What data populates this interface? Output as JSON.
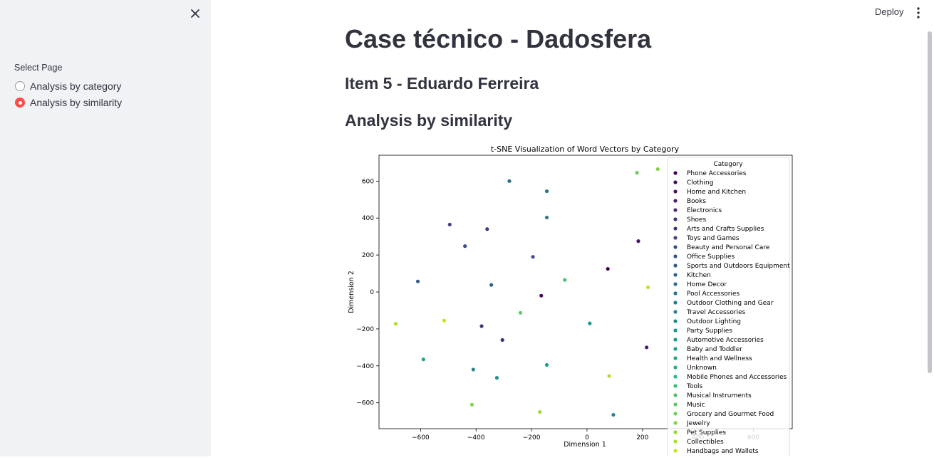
{
  "sidebar": {
    "nav_label": "Select Page",
    "options": [
      {
        "label": "Analysis by category",
        "selected": false
      },
      {
        "label": "Analysis by similarity",
        "selected": true
      }
    ]
  },
  "header": {
    "deploy_label": "Deploy"
  },
  "main": {
    "title": "Case técnico - Dadosfera",
    "subtitle": "Item 5 - Eduardo Ferreira",
    "section": "Analysis by similarity"
  },
  "colors": {
    "accent": "#ff4b4b",
    "sidebar_bg": "#f0f2f6",
    "text": "#31333f"
  },
  "chart_data": {
    "type": "scatter",
    "title": "t-SNE Visualization of Word Vectors by Category",
    "xlabel": "Dimension 1",
    "ylabel": "Dimension 2",
    "xlim": [
      -750,
      740
    ],
    "ylim": [
      -740,
      740
    ],
    "xticks": [
      -600,
      -400,
      -200,
      0,
      200,
      400,
      600
    ],
    "yticks": [
      -600,
      -400,
      -200,
      0,
      200,
      400,
      600
    ],
    "xtick_labels": [
      "−600",
      "−400",
      "−200",
      "0",
      "200",
      "400",
      "600"
    ],
    "ytick_labels": [
      "−600",
      "−400",
      "−200",
      "0",
      "200",
      "400",
      "600"
    ],
    "grid": false,
    "legend": {
      "title": "Category",
      "placement": "upper-right"
    },
    "categories": [
      "Phone Accessories",
      "Clothing",
      "Home and Kitchen",
      "Books",
      "Electronics",
      "Shoes",
      "Arts and Crafts Supplies",
      "Toys and Games",
      "Beauty and Personal Care",
      "Office Supplies",
      "Sports and Outdoors Equipment",
      "Kitchen",
      "Home Decor",
      "Pool Accessories",
      "Outdoor Clothing and Gear",
      "Travel Accessories",
      "Outdoor Lighting",
      "Party Supplies",
      "Automotive Accessories",
      "Baby and Toddler",
      "Health and Wellness",
      "Unknown",
      "Mobile Phones and Accessories",
      "Tools",
      "Musical Instruments",
      "Music",
      "Grocery and Gourmet Food",
      "Jewelry",
      "Pet Supplies",
      "Collectibles",
      "Handbags and Wallets"
    ],
    "colors": [
      "#440154",
      "#460b5e",
      "#471567",
      "#481e70",
      "#482878",
      "#46307e",
      "#443983",
      "#414287",
      "#3e4989",
      "#3a528b",
      "#365c8d",
      "#33638d",
      "#2f6c8e",
      "#2c738e",
      "#297b8e",
      "#26828e",
      "#23898e",
      "#21918c",
      "#1f988b",
      "#1fa088",
      "#22a785",
      "#28ae80",
      "#32b67a",
      "#3fbc73",
      "#4fc16b",
      "#5ec962",
      "#6ccd5a",
      "#84d44b",
      "#98d83e",
      "#b0dd2f",
      "#c8e020"
    ],
    "points": [
      {
        "x": 75,
        "y": 125,
        "c": 0
      },
      {
        "x": -165,
        "y": -20,
        "c": 1
      },
      {
        "x": 185,
        "y": 275,
        "c": 2
      },
      {
        "x": 215,
        "y": -300,
        "c": 3
      },
      {
        "x": -305,
        "y": -260,
        "c": 4
      },
      {
        "x": -380,
        "y": -185,
        "c": 5
      },
      {
        "x": -360,
        "y": 340,
        "c": 6
      },
      {
        "x": -495,
        "y": 365,
        "c": 7
      },
      {
        "x": -440,
        "y": 248,
        "c": 8
      },
      {
        "x": -195,
        "y": 190,
        "c": 9
      },
      {
        "x": -610,
        "y": 57,
        "c": 10
      },
      {
        "x": -345,
        "y": 38,
        "c": 11
      },
      {
        "x": -280,
        "y": 600,
        "c": 12
      },
      {
        "x": -145,
        "y": 545,
        "c": 13
      },
      {
        "x": -145,
        "y": 403,
        "c": 14
      },
      {
        "x": 95,
        "y": -665,
        "c": 15
      },
      {
        "x": -410,
        "y": -420,
        "c": 16
      },
      {
        "x": -325,
        "y": -465,
        "c": 17
      },
      {
        "x": 10,
        "y": -170,
        "c": 18
      },
      {
        "x": -145,
        "y": -395,
        "c": 19
      },
      {
        "x": -590,
        "y": -365,
        "c": 20
      },
      {
        "x": -80,
        "y": 65,
        "c": 24
      },
      {
        "x": -240,
        "y": -113,
        "c": 25
      },
      {
        "x": 180,
        "y": 645,
        "c": 26
      },
      {
        "x": 255,
        "y": 665,
        "c": 27
      },
      {
        "x": -415,
        "y": -610,
        "c": 27
      },
      {
        "x": -170,
        "y": -650,
        "c": 28
      },
      {
        "x": -690,
        "y": -172,
        "c": 29
      },
      {
        "x": 80,
        "y": -455,
        "c": 29
      },
      {
        "x": -515,
        "y": -155,
        "c": 30
      },
      {
        "x": 220,
        "y": 25,
        "c": 30
      }
    ]
  }
}
